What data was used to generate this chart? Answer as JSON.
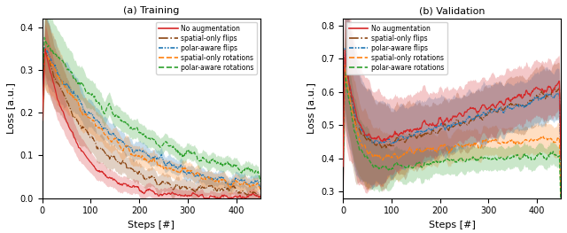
{
  "colors": {
    "no_aug": "#d62728",
    "spatial_flip": "#8b4513",
    "polar_flip": "#1f77b4",
    "spatial_rot": "#ff7f0e",
    "polar_rot": "#2ca02c"
  },
  "train_ylim": [
    0.0,
    0.42
  ],
  "val_ylim": [
    0.28,
    0.82
  ],
  "steps": 450,
  "xlabel": "Steps [#]",
  "ylabel": "Loss [a.u.]",
  "subtitle_train": "(a) Training",
  "subtitle_val": "(b) Validation",
  "legend_labels": [
    "No augmentation",
    "spatial-only flips",
    "polar-aware flips",
    "spatial-only rotations",
    "polar-aware rotations"
  ],
  "train_yticks": [
    0.0,
    0.1,
    0.2,
    0.3,
    0.4
  ],
  "val_yticks": [
    0.3,
    0.4,
    0.5,
    0.6,
    0.7,
    0.8
  ],
  "xticks": [
    0,
    100,
    200,
    300,
    400
  ]
}
